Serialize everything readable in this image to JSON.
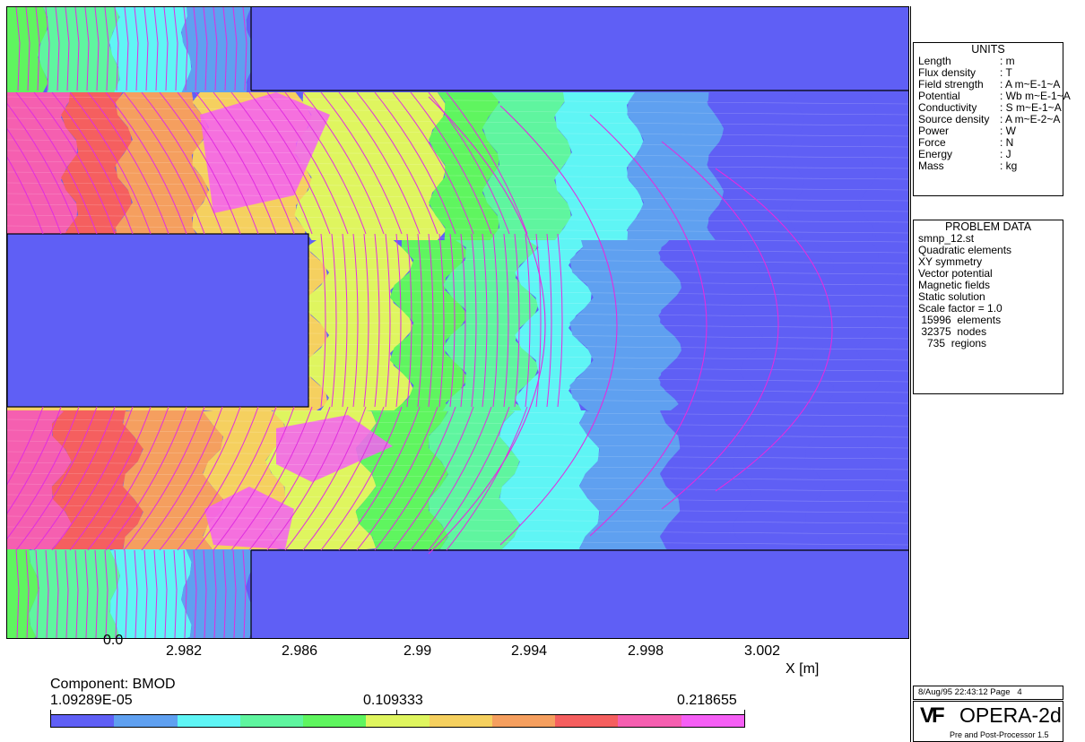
{
  "x_axis": {
    "ticks": [
      "0.0",
      "2.982",
      "2.986",
      "2.99",
      "2.994",
      "2.998",
      "3.002"
    ],
    "label": "X [m]"
  },
  "units_panel": {
    "title": "UNITS",
    "rows": [
      {
        "k": "Length",
        "v": ": m"
      },
      {
        "k": "Flux density",
        "v": ": T"
      },
      {
        "k": "Field strength",
        "v": ": A m~E-1~A"
      },
      {
        "k": "Potential",
        "v": ": Wb m~E-1~A"
      },
      {
        "k": "Conductivity",
        "v": ": S m~E-1~A"
      },
      {
        "k": "Source density",
        "v": ": A m~E-2~A"
      },
      {
        "k": "Power",
        "v": ": W"
      },
      {
        "k": "Force",
        "v": ": N"
      },
      {
        "k": "Energy",
        "v": ": J"
      },
      {
        "k": "Mass",
        "v": ": kg"
      }
    ]
  },
  "problem_panel": {
    "title": "PROBLEM DATA",
    "lines": [
      "smnp_12.st",
      "Quadratic elements",
      "XY symmetry",
      "Vector potential",
      "Magnetic fields",
      "Static solution",
      "Scale factor = 1.0",
      " 15996  elements",
      " 32375  nodes",
      "   735  regions"
    ]
  },
  "colorbar": {
    "component": "Component: BMOD",
    "min": "1.09289E-05",
    "mid": "0.109333",
    "max": "0.218655",
    "colors": [
      "#5f5ff5",
      "#5fa0f0",
      "#5ff5f5",
      "#5ff59f",
      "#5ff55f",
      "#dff55f",
      "#f5d05f",
      "#f59f5f",
      "#f55f5f",
      "#f55fb0",
      "#f55ff5"
    ]
  },
  "footer": {
    "date": "8/Aug/95 22:43:12 Page   4",
    "logo_mark": "VF",
    "product": "OPERA-2d",
    "subtitle": "Pre and Post-Processor 1.5"
  }
}
